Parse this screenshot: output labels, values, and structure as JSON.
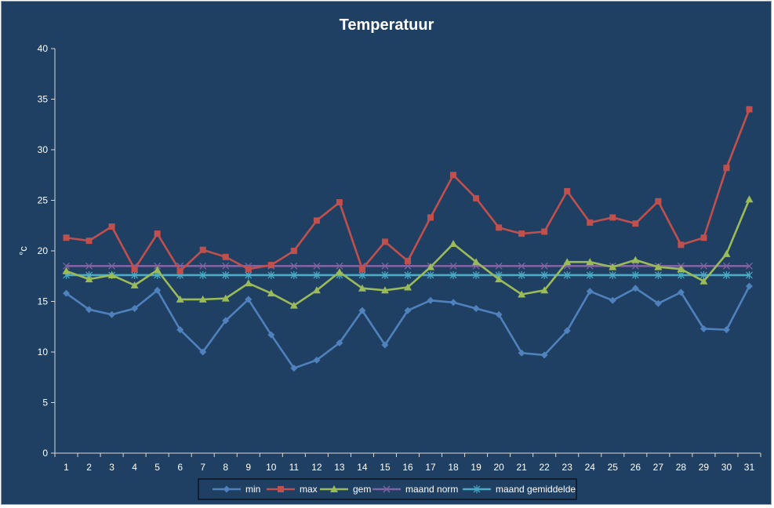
{
  "chart_data": {
    "type": "line",
    "title": "Temperatuur",
    "xlabel": "",
    "ylabel": "°c",
    "ylim": [
      0,
      40
    ],
    "yticks": [
      0,
      5,
      10,
      15,
      20,
      25,
      30,
      35,
      40
    ],
    "grid": false,
    "legend_position": "bottom",
    "categories": [
      "1",
      "2",
      "3",
      "4",
      "5",
      "6",
      "7",
      "8",
      "9",
      "10",
      "11",
      "12",
      "13",
      "14",
      "15",
      "16",
      "17",
      "18",
      "19",
      "20",
      "21",
      "22",
      "23",
      "24",
      "25",
      "26",
      "27",
      "28",
      "29",
      "30",
      "31"
    ],
    "series": [
      {
        "name": "min",
        "color": "#4f81bd",
        "marker": "diamond",
        "values": [
          15.8,
          14.2,
          13.7,
          14.3,
          16.1,
          12.2,
          10.0,
          13.1,
          15.2,
          11.7,
          8.4,
          9.2,
          10.9,
          14.1,
          10.7,
          14.1,
          15.1,
          14.9,
          14.3,
          13.7,
          9.9,
          9.7,
          12.1,
          16.0,
          15.1,
          16.3,
          14.8,
          15.9,
          12.3,
          12.2,
          16.5
        ]
      },
      {
        "name": "max",
        "color": "#c0504d",
        "marker": "square",
        "values": [
          21.3,
          21.0,
          22.4,
          18.2,
          21.7,
          18.0,
          20.1,
          19.4,
          18.2,
          18.6,
          20.0,
          23.0,
          24.8,
          18.2,
          20.9,
          19.0,
          23.3,
          27.5,
          25.2,
          22.3,
          21.7,
          21.9,
          25.9,
          22.8,
          23.3,
          22.7,
          24.9,
          20.6,
          21.3,
          28.2,
          34.0
        ]
      },
      {
        "name": "gem",
        "color": "#9bbb59",
        "marker": "triangle",
        "values": [
          18.0,
          17.2,
          17.6,
          16.6,
          18.1,
          15.2,
          15.2,
          15.3,
          16.8,
          15.8,
          14.6,
          16.1,
          17.9,
          16.3,
          16.1,
          16.4,
          18.4,
          20.7,
          18.9,
          17.2,
          15.7,
          16.1,
          18.9,
          18.9,
          18.4,
          19.1,
          18.4,
          18.2,
          17.0,
          19.7,
          25.1
        ]
      },
      {
        "name": "maand norm",
        "color": "#8064a2",
        "marker": "x",
        "values": [
          18.5,
          18.5,
          18.5,
          18.5,
          18.5,
          18.5,
          18.5,
          18.5,
          18.5,
          18.5,
          18.5,
          18.5,
          18.5,
          18.5,
          18.5,
          18.5,
          18.5,
          18.5,
          18.5,
          18.5,
          18.5,
          18.5,
          18.5,
          18.5,
          18.5,
          18.5,
          18.5,
          18.5,
          18.5,
          18.5,
          18.5
        ]
      },
      {
        "name": "maand gemiddelde",
        "color": "#4bacc6",
        "marker": "star",
        "values": [
          17.6,
          17.6,
          17.6,
          17.6,
          17.6,
          17.6,
          17.6,
          17.6,
          17.6,
          17.6,
          17.6,
          17.6,
          17.6,
          17.6,
          17.6,
          17.6,
          17.6,
          17.6,
          17.6,
          17.6,
          17.6,
          17.6,
          17.6,
          17.6,
          17.6,
          17.6,
          17.6,
          17.6,
          17.6,
          17.6,
          17.6
        ]
      }
    ]
  }
}
